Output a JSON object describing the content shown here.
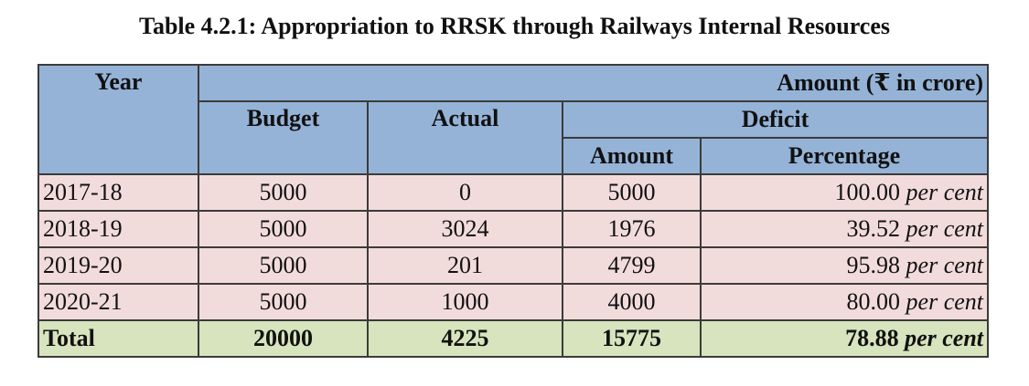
{
  "caption": "Table 4.2.1: Appropriation to RRSK through Railways Internal Resources",
  "header": {
    "year": "Year",
    "amount_unit": "Amount (₹ in crore)",
    "budget": "Budget",
    "actual": "Actual",
    "deficit": "Deficit",
    "deficit_amount": "Amount",
    "deficit_percentage": "Percentage"
  },
  "rows": [
    {
      "year": "2017-18",
      "budget": "5000",
      "actual": "0",
      "deficit_amount": "5000",
      "percentage": "100.00",
      "per_cent": "per cent"
    },
    {
      "year": "2018-19",
      "budget": "5000",
      "actual": "3024",
      "deficit_amount": "1976",
      "percentage": "39.52",
      "per_cent": "per cent"
    },
    {
      "year": "2019-20",
      "budget": "5000",
      "actual": "201",
      "deficit_amount": "4799",
      "percentage": "95.98",
      "per_cent": "per cent"
    },
    {
      "year": "2020-21",
      "budget": "5000",
      "actual": "1000",
      "deficit_amount": "4000",
      "percentage": "80.00",
      "per_cent": "per cent"
    }
  ],
  "total": {
    "label": "Total",
    "budget": "20000",
    "actual": "4225",
    "deficit_amount": "15775",
    "percentage": "78.88",
    "per_cent": "per cent"
  },
  "colors": {
    "header_bg": "#95b3d7",
    "row_bg": "#f2dcdb",
    "total_bg": "#d7e4bd"
  }
}
